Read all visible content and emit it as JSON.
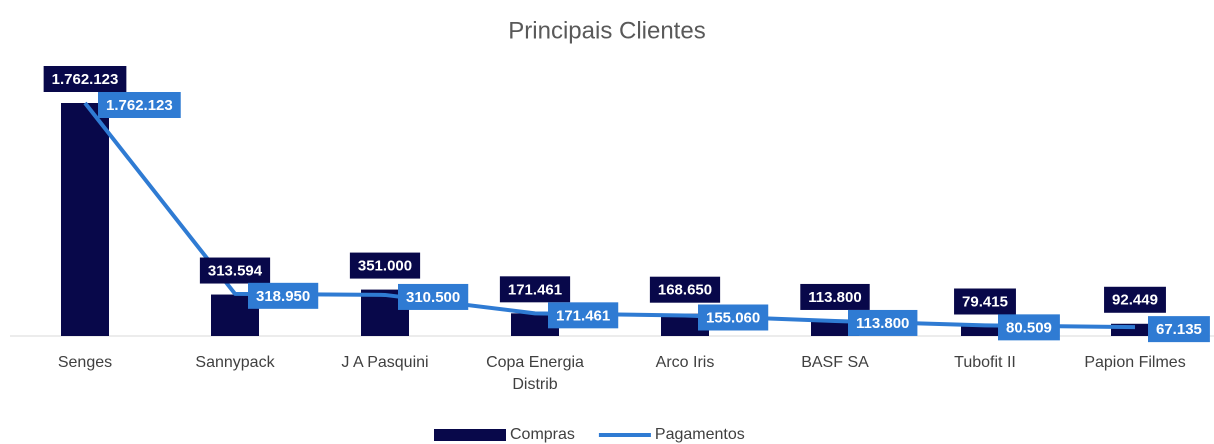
{
  "chart_data": {
    "type": "combo",
    "title": "Principais Clientes",
    "categories": [
      "Senges",
      "Sannypack",
      "J A Pasquini",
      "Copa Energia Distrib",
      "Arco Iris",
      "BASF SA",
      "Tubofit II",
      "Papion Filmes"
    ],
    "series": [
      {
        "name": "Compras",
        "type": "bar",
        "color": "#08084a",
        "values": [
          1762123,
          313594,
          351000,
          171461,
          168650,
          113800,
          79415,
          92449
        ],
        "value_labels": [
          "1.762.123",
          "313.594",
          "351.000",
          "171.461",
          "168.650",
          "113.800",
          "79.415",
          "92.449"
        ]
      },
      {
        "name": "Pagamentos",
        "type": "line",
        "color": "#2f7bd3",
        "values": [
          1762123,
          318950,
          310500,
          171461,
          155060,
          113800,
          80509,
          67135
        ],
        "value_labels": [
          "1.762.123",
          "318.950",
          "310.500",
          "171.461",
          "155.060",
          "113.800",
          "80.509",
          "67.135"
        ]
      }
    ],
    "legend": "bottom"
  }
}
